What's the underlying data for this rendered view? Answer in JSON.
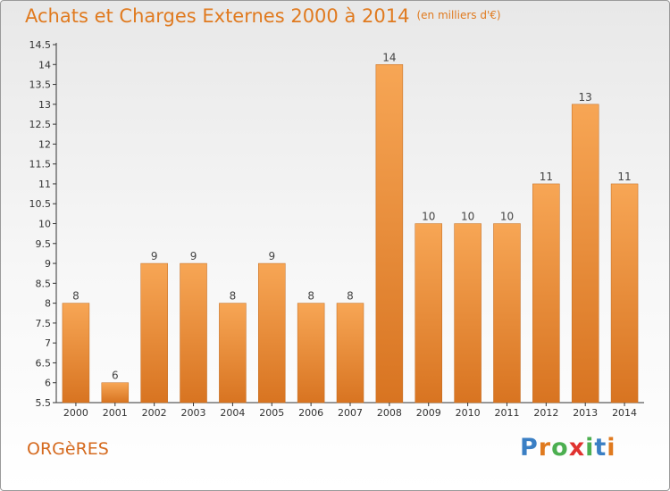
{
  "title": "Achats et Charges Externes 2000 à 2014",
  "subtitle": "(en milliers d'€)",
  "commune": "ORGèRES",
  "brand": {
    "text": "Proxiti",
    "letters": [
      "P",
      "r",
      "o",
      "x",
      "i",
      "t",
      "i"
    ],
    "colors": [
      "#3a7fc4",
      "#e07a1f",
      "#4caf50",
      "#e0322f",
      "#4caf50",
      "#3a7fc4",
      "#e07a1f"
    ]
  },
  "colors": {
    "bar_top": "#f7a655",
    "bar_bottom": "#d87421",
    "label": "#444444",
    "accent": "#e07a1f"
  },
  "chart_data": {
    "type": "bar",
    "categories": [
      "2000",
      "2001",
      "2002",
      "2003",
      "2004",
      "2005",
      "2006",
      "2007",
      "2008",
      "2009",
      "2010",
      "2011",
      "2012",
      "2013",
      "2014"
    ],
    "values": [
      8,
      6,
      9,
      9,
      8,
      9,
      8,
      8,
      14,
      10,
      10,
      10,
      11,
      13,
      11
    ],
    "data_labels": [
      "8",
      "6",
      "9",
      "9",
      "8",
      "9",
      "8",
      "8",
      "14",
      "10",
      "10",
      "10",
      "11",
      "13",
      "11"
    ],
    "yticks": [
      5.5,
      6,
      6.5,
      7,
      7.5,
      8,
      8.5,
      9,
      9.5,
      10,
      10.5,
      11,
      11.5,
      12,
      12.5,
      13,
      13.5,
      14,
      14.5
    ],
    "ytick_labels": [
      "5.5",
      "6",
      "6.5",
      "7",
      "7.5",
      "8",
      "8.5",
      "9",
      "9.5",
      "10",
      "10.5",
      "11",
      "11.5",
      "12",
      "12.5",
      "13",
      "13.5",
      "14",
      "14.5"
    ],
    "ylim": [
      5.5,
      14.5
    ],
    "grid": false,
    "legend": "none"
  }
}
